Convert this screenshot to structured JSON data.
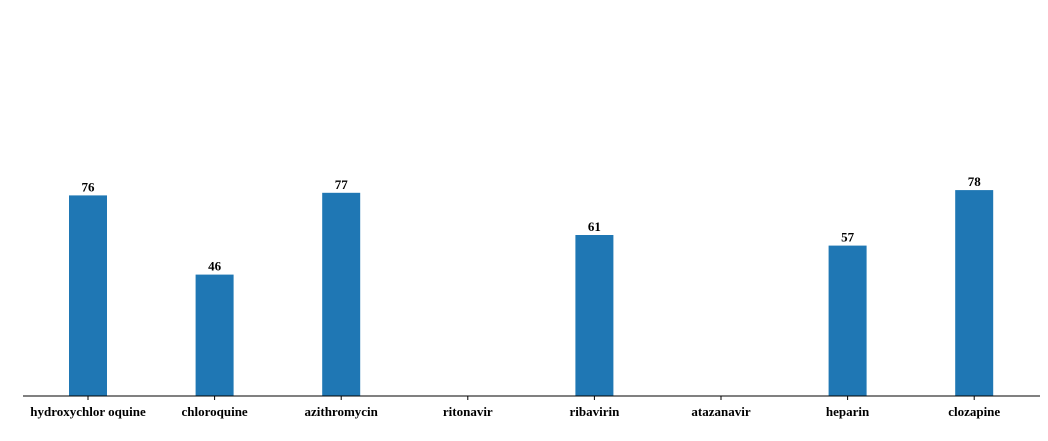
{
  "chart_data": {
    "type": "bar",
    "title": "",
    "xlabel": "",
    "ylabel": "",
    "categories": [
      "hydroxychlor oquine",
      "chloroquine",
      "azithromycin",
      "ritonavir",
      "ribavirin",
      "atazanavir",
      "heparin",
      "clozapine"
    ],
    "values": [
      76,
      46,
      77,
      0,
      61,
      0,
      57,
      78
    ],
    "data_labels": [
      "76",
      "46",
      "77",
      "",
      "61",
      "",
      "57",
      "78"
    ],
    "ylim": [
      0,
      147
    ],
    "grid": false,
    "legend": "none",
    "colors": {
      "bar": "#1f77b4",
      "axis": "#000000",
      "text": "#000000",
      "background": "#ffffff"
    }
  }
}
